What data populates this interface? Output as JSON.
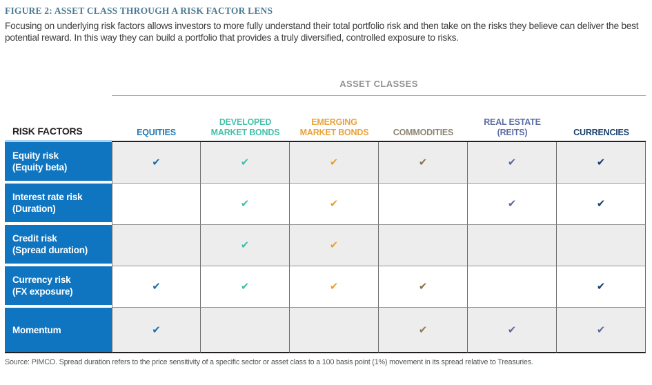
{
  "figure": {
    "title": "FIGURE 2: ASSET CLASS THROUGH A RISK FACTOR LENS",
    "description": "Focusing on underlying risk factors allows investors to more fully understand their total portfolio risk and then take on the risks they believe can deliver the best potential reward. In this way they can build a portfolio that provides a truly diversified, controlled exposure to risks."
  },
  "table": {
    "group_header": "ASSET CLASSES",
    "row_header_label": "RISK FACTORS",
    "row_header_bg": "#0f75c0",
    "check_glyph": "✔",
    "columns": [
      {
        "label": "EQUITIES",
        "color": "#1f78b5"
      },
      {
        "label": "DEVELOPED\nMARKET BONDS",
        "color": "#45c0a9"
      },
      {
        "label": "EMERGING\nMARKET BONDS",
        "color": "#e9a23b"
      },
      {
        "label": "COMMODITIES",
        "color": "#8e8474"
      },
      {
        "label": "REAL ESTATE\n(REITS)",
        "color": "#5c6ba6"
      },
      {
        "label": "CURRENCIES",
        "color": "#16406f"
      }
    ],
    "rows": [
      {
        "label_line1": "Equity risk",
        "label_line2": "(Equity beta)",
        "checks": [
          "#1a6fa8",
          "#3fc0a6",
          "#e9a02c",
          "#8a7450",
          "#5b69a3",
          "#153f6c"
        ]
      },
      {
        "label_line1": "Interest rate risk",
        "label_line2": "(Duration)",
        "checks": [
          null,
          "#3fc0a6",
          "#e9a02c",
          null,
          "#5b69a3",
          "#153f6c"
        ]
      },
      {
        "label_line1": "Credit risk",
        "label_line2": "(Spread duration)",
        "checks": [
          null,
          "#3fc0a6",
          "#e9a02c",
          null,
          null,
          null
        ]
      },
      {
        "label_line1": "Currency risk",
        "label_line2": "(FX exposure)",
        "checks": [
          "#1a6fa8",
          "#3fc0a6",
          "#e9a02c",
          "#8a6f43",
          null,
          "#153f6c"
        ]
      },
      {
        "label_line1": "Momentum",
        "label_line2": "",
        "checks": [
          "#1a6fa8",
          null,
          null,
          "#8f7a52",
          "#5b69a3",
          "#5b69a3"
        ]
      }
    ]
  },
  "footer": {
    "source": "Source: PIMCO. Spread duration refers to the price sensitivity of a specific sector or asset class to a 100 basis point (1%) movement in its spread relative to Treasuries."
  }
}
